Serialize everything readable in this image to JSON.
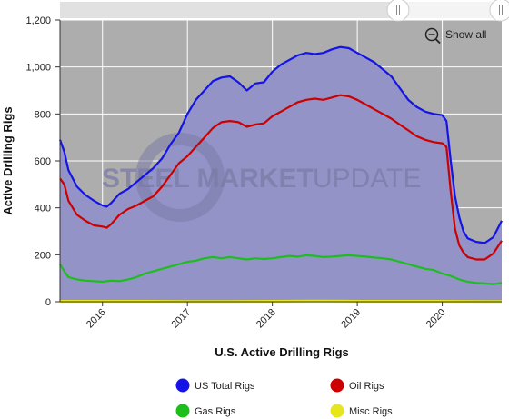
{
  "watermark": {
    "bold": "STEEL MARKET",
    "light": "UPDATE"
  },
  "controls": {
    "show_all_label": "Show all"
  },
  "colors": {
    "plot_bg": "#adadad",
    "area_fill": "#9393c8",
    "total": "#1414e6",
    "oil": "#cc0000",
    "gas": "#1cbe1c",
    "misc": "#e6e61e",
    "grid": "#ffffff"
  },
  "chart_data": {
    "type": "line",
    "title": "",
    "xlabel": "U.S. Active Drilling Rigs",
    "ylabel": "Active Drilling Rigs",
    "xlim": [
      2015.5,
      2020.7
    ],
    "ylim": [
      0,
      1200
    ],
    "yticks": [
      0,
      200,
      400,
      600,
      800,
      1000,
      1200
    ],
    "ytick_labels": [
      "0",
      "200",
      "400",
      "600",
      "800",
      "1,000",
      "1,200"
    ],
    "xticks": [
      2016,
      2017,
      2018,
      2019,
      2020
    ],
    "xtick_labels": [
      "2016",
      "2017",
      "2018",
      "2019",
      "2020"
    ],
    "grid": true,
    "legend_position": "bottom",
    "series": [
      {
        "name": "US Total Rigs",
        "color": "#1414e6",
        "x": [
          2015.5,
          2015.55,
          2015.6,
          2015.7,
          2015.8,
          2015.9,
          2016.0,
          2016.05,
          2016.1,
          2016.2,
          2016.3,
          2016.4,
          2016.5,
          2016.6,
          2016.7,
          2016.8,
          2016.9,
          2017.0,
          2017.1,
          2017.2,
          2017.3,
          2017.4,
          2017.5,
          2017.6,
          2017.7,
          2017.8,
          2017.9,
          2018.0,
          2018.1,
          2018.2,
          2018.3,
          2018.4,
          2018.5,
          2018.6,
          2018.7,
          2018.8,
          2018.9,
          2019.0,
          2019.1,
          2019.2,
          2019.3,
          2019.4,
          2019.5,
          2019.6,
          2019.7,
          2019.8,
          2019.9,
          2020.0,
          2020.05,
          2020.1,
          2020.15,
          2020.2,
          2020.25,
          2020.3,
          2020.4,
          2020.5,
          2020.6,
          2020.7
        ],
        "values": [
          690,
          640,
          560,
          490,
          455,
          430,
          410,
          405,
          420,
          460,
          480,
          510,
          540,
          570,
          610,
          670,
          720,
          800,
          860,
          900,
          940,
          955,
          960,
          935,
          900,
          930,
          935,
          980,
          1010,
          1030,
          1050,
          1060,
          1055,
          1060,
          1075,
          1085,
          1080,
          1060,
          1040,
          1020,
          990,
          960,
          910,
          860,
          830,
          810,
          800,
          795,
          770,
          600,
          450,
          360,
          300,
          270,
          255,
          250,
          275,
          345
        ]
      },
      {
        "name": "Oil Rigs",
        "color": "#cc0000",
        "x": [
          2015.5,
          2015.55,
          2015.6,
          2015.7,
          2015.8,
          2015.9,
          2016.0,
          2016.05,
          2016.1,
          2016.2,
          2016.3,
          2016.4,
          2016.5,
          2016.6,
          2016.7,
          2016.8,
          2016.9,
          2017.0,
          2017.1,
          2017.2,
          2017.3,
          2017.4,
          2017.5,
          2017.6,
          2017.7,
          2017.8,
          2017.9,
          2018.0,
          2018.1,
          2018.2,
          2018.3,
          2018.4,
          2018.5,
          2018.6,
          2018.7,
          2018.8,
          2018.9,
          2019.0,
          2019.1,
          2019.2,
          2019.3,
          2019.4,
          2019.5,
          2019.6,
          2019.7,
          2019.8,
          2019.9,
          2020.0,
          2020.05,
          2020.1,
          2020.15,
          2020.2,
          2020.25,
          2020.3,
          2020.4,
          2020.5,
          2020.6,
          2020.7
        ],
        "values": [
          525,
          500,
          430,
          370,
          345,
          325,
          320,
          315,
          330,
          370,
          395,
          410,
          430,
          450,
          490,
          540,
          590,
          620,
          660,
          700,
          740,
          765,
          770,
          765,
          745,
          755,
          760,
          790,
          810,
          830,
          850,
          860,
          865,
          860,
          870,
          880,
          875,
          860,
          840,
          820,
          800,
          780,
          755,
          730,
          705,
          690,
          680,
          675,
          660,
          470,
          310,
          240,
          210,
          190,
          180,
          180,
          205,
          260
        ]
      },
      {
        "name": "Gas Rigs",
        "color": "#1cbe1c",
        "x": [
          2015.5,
          2015.55,
          2015.6,
          2015.7,
          2015.8,
          2015.9,
          2016.0,
          2016.1,
          2016.2,
          2016.3,
          2016.4,
          2016.5,
          2016.6,
          2016.7,
          2016.8,
          2016.9,
          2017.0,
          2017.1,
          2017.2,
          2017.3,
          2017.4,
          2017.5,
          2017.6,
          2017.7,
          2017.8,
          2017.9,
          2018.0,
          2018.1,
          2018.2,
          2018.3,
          2018.4,
          2018.5,
          2018.6,
          2018.7,
          2018.8,
          2018.9,
          2019.0,
          2019.1,
          2019.2,
          2019.3,
          2019.4,
          2019.5,
          2019.6,
          2019.7,
          2019.8,
          2019.9,
          2020.0,
          2020.1,
          2020.2,
          2020.3,
          2020.4,
          2020.5,
          2020.6,
          2020.7
        ],
        "values": [
          160,
          130,
          105,
          95,
          90,
          88,
          85,
          90,
          88,
          95,
          105,
          120,
          130,
          140,
          150,
          160,
          170,
          175,
          185,
          190,
          185,
          190,
          185,
          180,
          185,
          182,
          185,
          190,
          195,
          192,
          198,
          195,
          190,
          192,
          195,
          198,
          195,
          192,
          188,
          185,
          180,
          170,
          160,
          150,
          140,
          135,
          120,
          110,
          95,
          85,
          80,
          78,
          75,
          80
        ]
      },
      {
        "name": "Misc Rigs",
        "color": "#e6e61e",
        "x": [
          2015.5,
          2016.0,
          2016.5,
          2017.0,
          2017.5,
          2018.0,
          2018.5,
          2019.0,
          2019.5,
          2020.0,
          2020.5,
          2020.7
        ],
        "values": [
          2,
          2,
          2,
          1,
          1,
          2,
          3,
          2,
          2,
          2,
          1,
          1
        ]
      }
    ]
  }
}
